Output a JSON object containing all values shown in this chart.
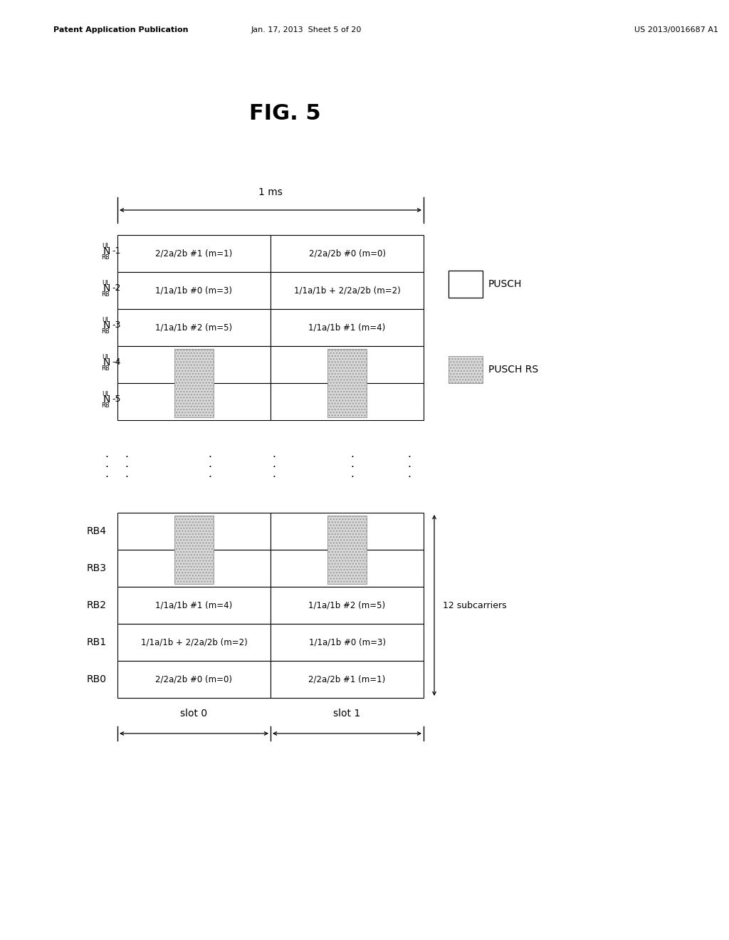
{
  "title": "FIG. 5",
  "header_left": "Patent Application Publication",
  "header_center": "Jan. 17, 2013  Sheet 5 of 20",
  "header_right": "US 2013/0016687 A1",
  "bg_color": "#ffffff",
  "top_table_rows": [
    {
      "suffix": "-1",
      "slot0": "2/2a/2b #1 (m=1)",
      "slot1": "2/2a/2b #0 (m=0)",
      "shaded": false
    },
    {
      "suffix": "-2",
      "slot0": "1/1a/1b #0 (m=3)",
      "slot1": "1/1a/1b + 2/2a/2b (m=2)",
      "shaded": false
    },
    {
      "suffix": "-3",
      "slot0": "1/1a/1b #2 (m=5)",
      "slot1": "1/1a/1b #1 (m=4)",
      "shaded": false
    },
    {
      "suffix": "-4",
      "slot0": "",
      "slot1": "",
      "shaded": true
    },
    {
      "suffix": "-5",
      "slot0": "",
      "slot1": "",
      "shaded": true
    }
  ],
  "bottom_table_rows": [
    {
      "label": "RB4",
      "slot0": "",
      "slot1": "",
      "shaded": true
    },
    {
      "label": "RB3",
      "slot0": "",
      "slot1": "",
      "shaded": true
    },
    {
      "label": "RB2",
      "slot0": "1/1a/1b #1 (m=4)",
      "slot1": "1/1a/1b #2 (m=5)",
      "shaded": false
    },
    {
      "label": "RB1",
      "slot0": "1/1a/1b + 2/2a/2b (m=2)",
      "slot1": "1/1a/1b #0 (m=3)",
      "shaded": false
    },
    {
      "label": "RB0",
      "slot0": "2/2a/2b #0 (m=0)",
      "slot1": "2/2a/2b #1 (m=1)",
      "shaded": false
    }
  ],
  "legend_pusch": "PUSCH",
  "legend_rs": "PUSCH RS",
  "ms_label": "1 ms",
  "slot0_label": "slot 0",
  "slot1_label": "slot 1",
  "subcarriers_label": "12 subcarriers"
}
